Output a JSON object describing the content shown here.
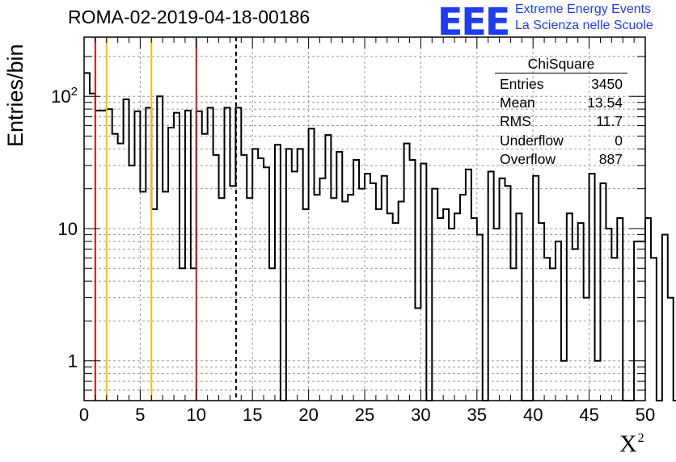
{
  "title": "ROMA-02-2019-04-18-00186",
  "logo": {
    "mark": "EEE",
    "line1": "Extreme Energy Events",
    "line2": "La Scienza nelle Scuole"
  },
  "stats": {
    "title": "ChiSquare",
    "rows": [
      {
        "label": "Entries",
        "value": "3450"
      },
      {
        "label": "Mean",
        "value": "13.54"
      },
      {
        "label": "RMS",
        "value": "11.7"
      },
      {
        "label": "Underflow",
        "value": "0"
      },
      {
        "label": "Overflow",
        "value": "887"
      }
    ]
  },
  "colors": {
    "line": "#000000",
    "red": "#e01010",
    "orange": "#f2c100",
    "grid": "#999999"
  },
  "chart_data": {
    "type": "histogram",
    "title": "ROMA-02-2019-04-18-00186",
    "xlabel": "X²",
    "ylabel": "Entries/bin",
    "xlim": [
      0,
      50
    ],
    "ylim": [
      0.5,
      280
    ],
    "yscale": "log",
    "grid": true,
    "bin_width": 0.5,
    "x_ticks": [
      "0",
      "5",
      "10",
      "15",
      "20",
      "25",
      "30",
      "35",
      "40",
      "45",
      "50"
    ],
    "y_ticks": [
      {
        "value": 1,
        "label": "1"
      },
      {
        "value": 10,
        "label": "10"
      },
      {
        "value": 100,
        "label": "10^2"
      }
    ],
    "values": [
      150,
      105,
      78,
      78,
      80,
      52,
      44,
      95,
      30,
      77,
      19,
      82,
      14,
      100,
      19,
      58,
      75,
      5,
      78,
      5,
      77,
      52,
      82,
      36,
      17,
      82,
      21,
      82,
      36,
      17,
      40,
      34,
      29,
      5,
      43,
      0,
      40,
      27,
      40,
      14,
      57,
      18,
      24,
      51,
      17,
      38,
      16,
      18,
      33,
      20,
      26,
      22,
      14,
      25,
      13,
      11,
      16,
      44,
      33,
      2.5,
      31,
      0,
      20,
      12,
      14,
      10,
      13,
      18,
      28,
      12,
      9,
      0,
      27,
      10,
      24,
      21,
      5,
      13,
      0,
      0,
      25,
      11,
      6,
      5,
      8,
      1,
      13,
      7,
      11,
      3,
      26,
      1,
      22,
      10,
      6,
      12,
      0,
      0,
      8,
      8,
      12,
      6,
      0,
      9,
      3,
      0,
      9,
      1,
      13,
      0,
      12,
      1.8,
      0,
      28,
      8,
      7,
      1.3,
      10,
      8,
      4,
      6,
      0,
      1.8,
      0,
      16,
      12,
      9,
      15,
      6,
      0,
      18,
      1,
      0,
      9,
      9,
      0,
      0,
      0,
      0,
      8,
      14,
      7,
      12,
      6,
      0,
      0,
      3,
      5,
      10,
      5,
      5,
      10,
      6,
      0,
      8,
      4,
      6,
      7,
      0,
      1,
      10,
      1,
      0,
      11,
      2,
      0,
      0,
      0,
      0,
      8,
      10,
      0,
      5,
      10,
      10,
      6,
      1,
      0,
      0,
      6,
      1,
      7,
      3,
      1,
      0,
      5,
      0,
      7,
      1,
      4,
      1,
      0,
      7,
      3
    ],
    "vertical_lines": [
      {
        "x": 1,
        "color": "red",
        "style": "solid"
      },
      {
        "x": 2,
        "color": "orange",
        "style": "solid"
      },
      {
        "x": 6,
        "color": "orange",
        "style": "solid"
      },
      {
        "x": 10,
        "color": "red",
        "style": "solid"
      },
      {
        "x": 13.54,
        "color": "black",
        "style": "dashed"
      }
    ]
  }
}
